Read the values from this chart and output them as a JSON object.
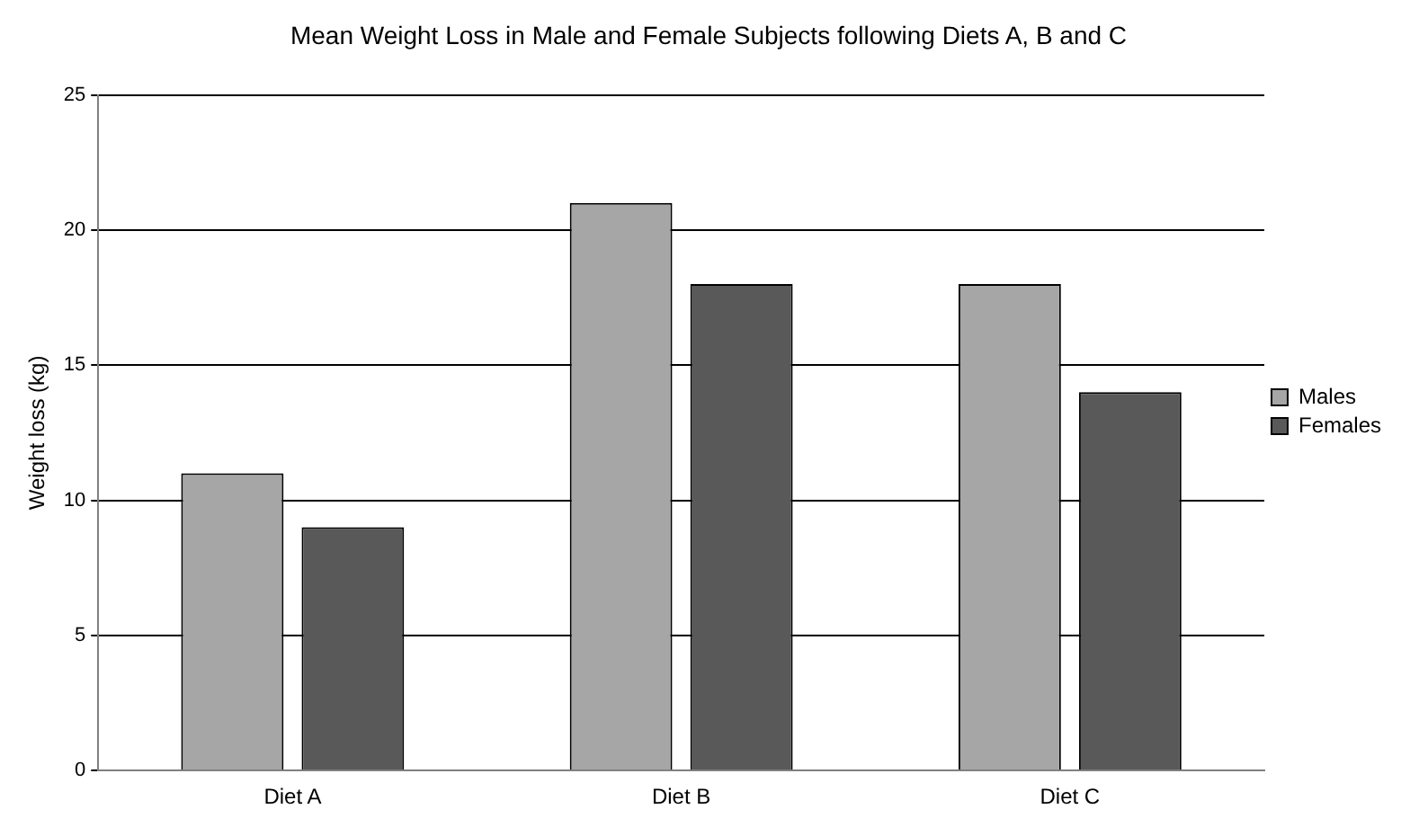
{
  "chart_data": {
    "type": "bar",
    "title": "Mean Weight Loss in Male and Female Subjects following Diets A, B and C",
    "ylabel": "Weight loss (kg)",
    "categories": [
      "Diet A",
      "Diet B",
      "Diet C"
    ],
    "series": [
      {
        "name": "Males",
        "color": "#a6a6a6",
        "values": [
          11,
          21,
          18
        ]
      },
      {
        "name": "Females",
        "color": "#595959",
        "values": [
          9,
          18,
          14
        ]
      }
    ],
    "ylim": [
      0,
      25
    ],
    "yticks": [
      0,
      5,
      10,
      15,
      20,
      25
    ],
    "grid": "y",
    "legend": "right"
  }
}
